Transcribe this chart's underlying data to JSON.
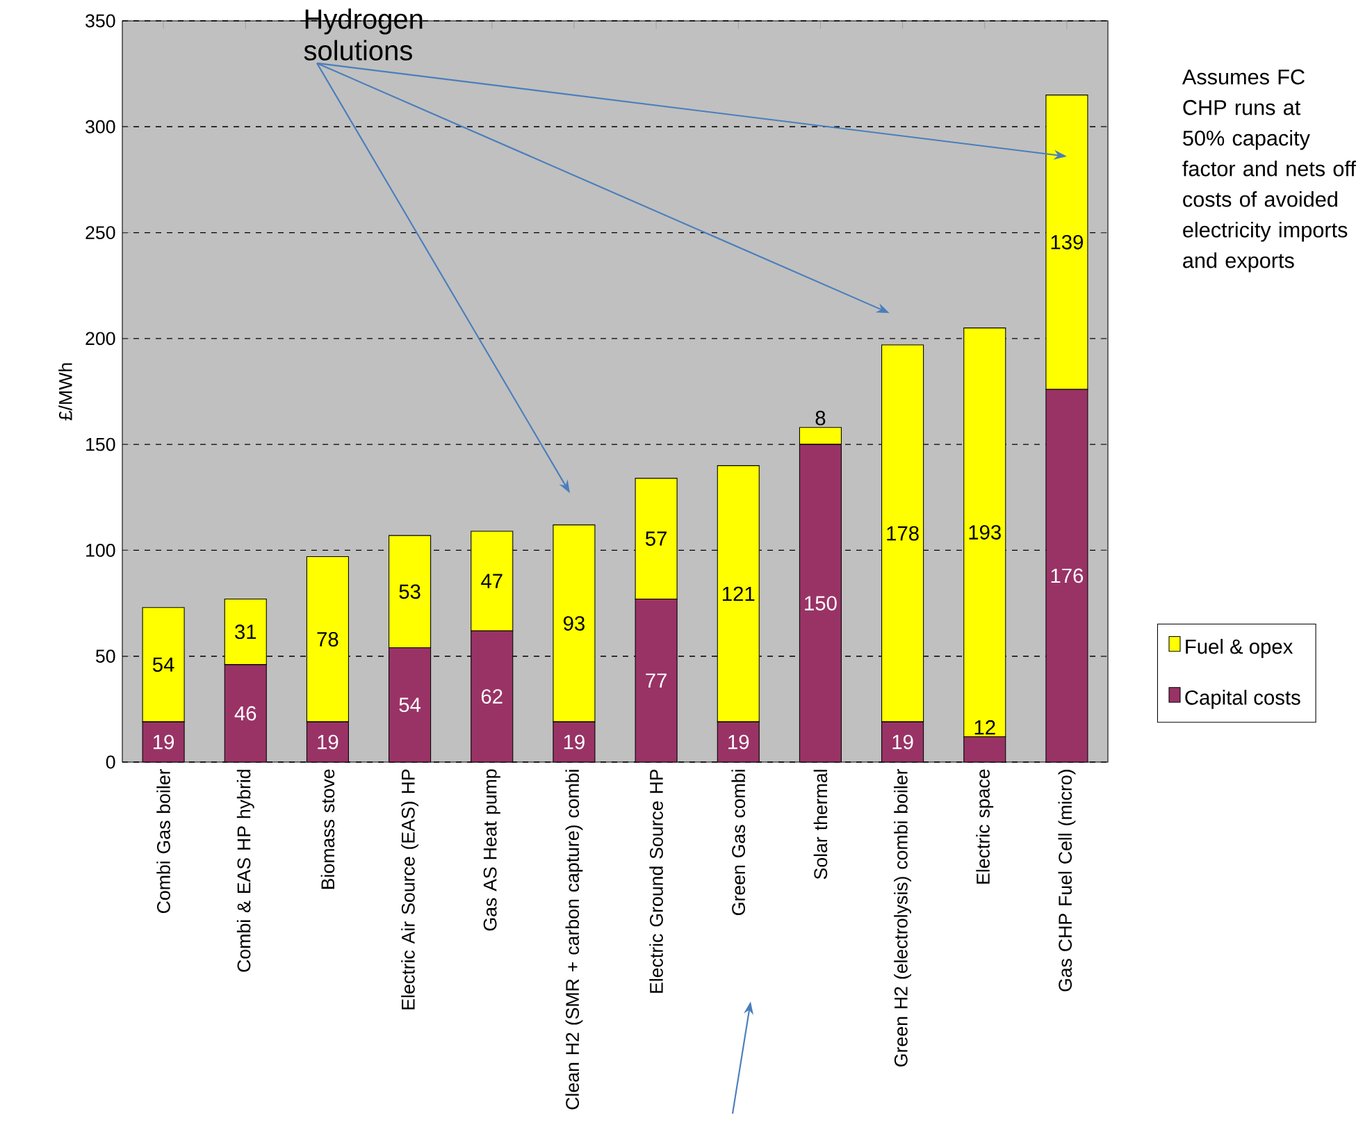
{
  "chart_data": {
    "type": "bar",
    "stacked": true,
    "ylabel": "£/MWh",
    "categories": [
      "Combi Gas boiler",
      "Combi & EAS HP hybrid",
      "Biomass stove",
      "Electric Air Source (EAS) HP",
      "Gas AS Heat pump",
      "Clean H2 (SMR + carbon capture) combi",
      "Electric Ground Source HP",
      "Green Gas combi",
      "Solar thermal",
      "Green H2 (electrolysis) combi boiler",
      "Electric space",
      "Gas CHP Fuel Cell (micro)"
    ],
    "series": [
      {
        "name": "Capital costs",
        "color": "#993366",
        "values": [
          19,
          46,
          19,
          54,
          62,
          19,
          77,
          19,
          150,
          19,
          12,
          176
        ]
      },
      {
        "name": "Fuel & opex",
        "color": "#ffff00",
        "values": [
          54,
          31,
          78,
          53,
          47,
          93,
          57,
          121,
          8,
          178,
          193,
          139
        ]
      }
    ],
    "ylim": [
      0,
      350
    ],
    "yticks": [
      0,
      50,
      100,
      150,
      200,
      250,
      300,
      350
    ],
    "grid": "y",
    "legend": "right",
    "data_labels": true,
    "annotations": [
      "Hydrogen solutions",
      "Assumes FC CHP runs at 50% capacity factor and nets off costs of avoided electricity imports and exports"
    ]
  }
}
